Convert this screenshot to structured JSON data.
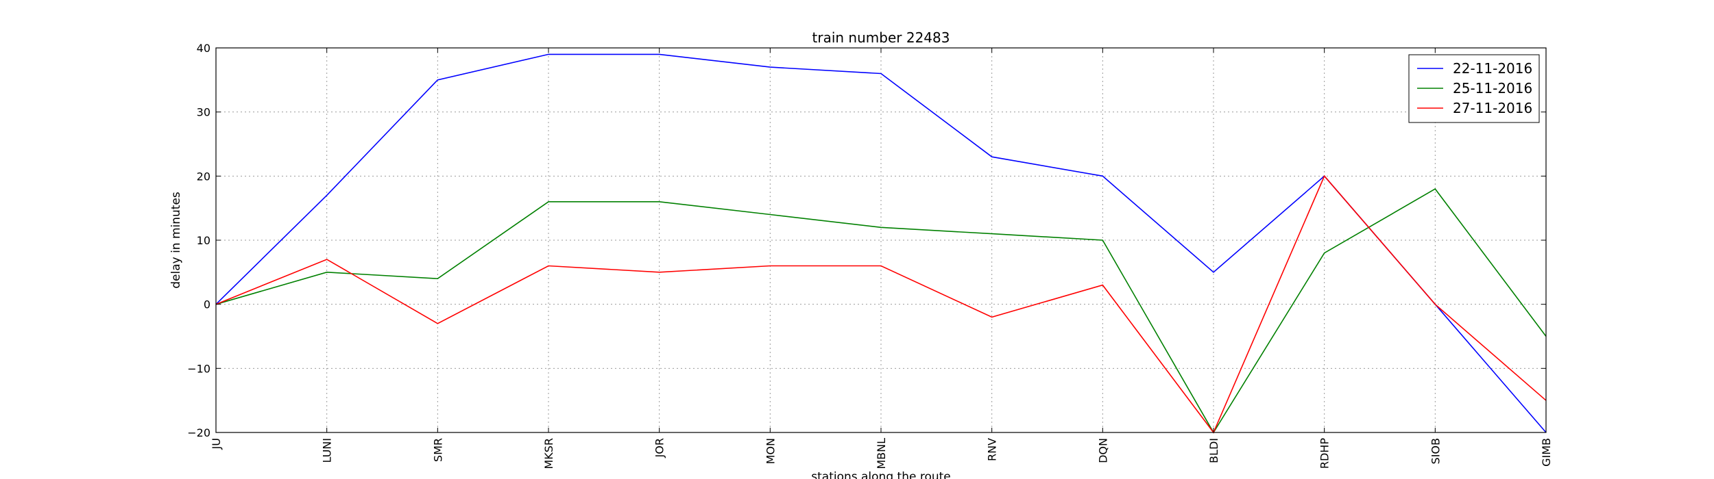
{
  "chart_data": {
    "type": "line",
    "title": "train number 22483",
    "xlabel": "stations along the route",
    "ylabel": "delay in minutes",
    "categories": [
      "JU",
      "LUNI",
      "SMR",
      "MKSR",
      "JOR",
      "MON",
      "MBNL",
      "RNV",
      "DQN",
      "BLDI",
      "RDHP",
      "SIOB",
      "GIMB"
    ],
    "ylim": [
      -20,
      40
    ],
    "yticks": [
      -20,
      -10,
      0,
      10,
      20,
      30,
      40
    ],
    "grid": true,
    "legend_position": "top-right",
    "series": [
      {
        "name": "22-11-2016",
        "color": "#0000ff",
        "values": [
          0,
          17,
          35,
          39,
          39,
          37,
          36,
          23,
          20,
          5,
          20,
          0,
          -20
        ]
      },
      {
        "name": "25-11-2016",
        "color": "#008000",
        "values": [
          0,
          5,
          4,
          16,
          16,
          14,
          12,
          11,
          10,
          -20,
          8,
          18,
          -5
        ]
      },
      {
        "name": "27-11-2016",
        "color": "#ff0000",
        "values": [
          0,
          7,
          -3,
          6,
          5,
          6,
          6,
          -2,
          3,
          -20,
          20,
          0,
          -15
        ]
      }
    ]
  }
}
